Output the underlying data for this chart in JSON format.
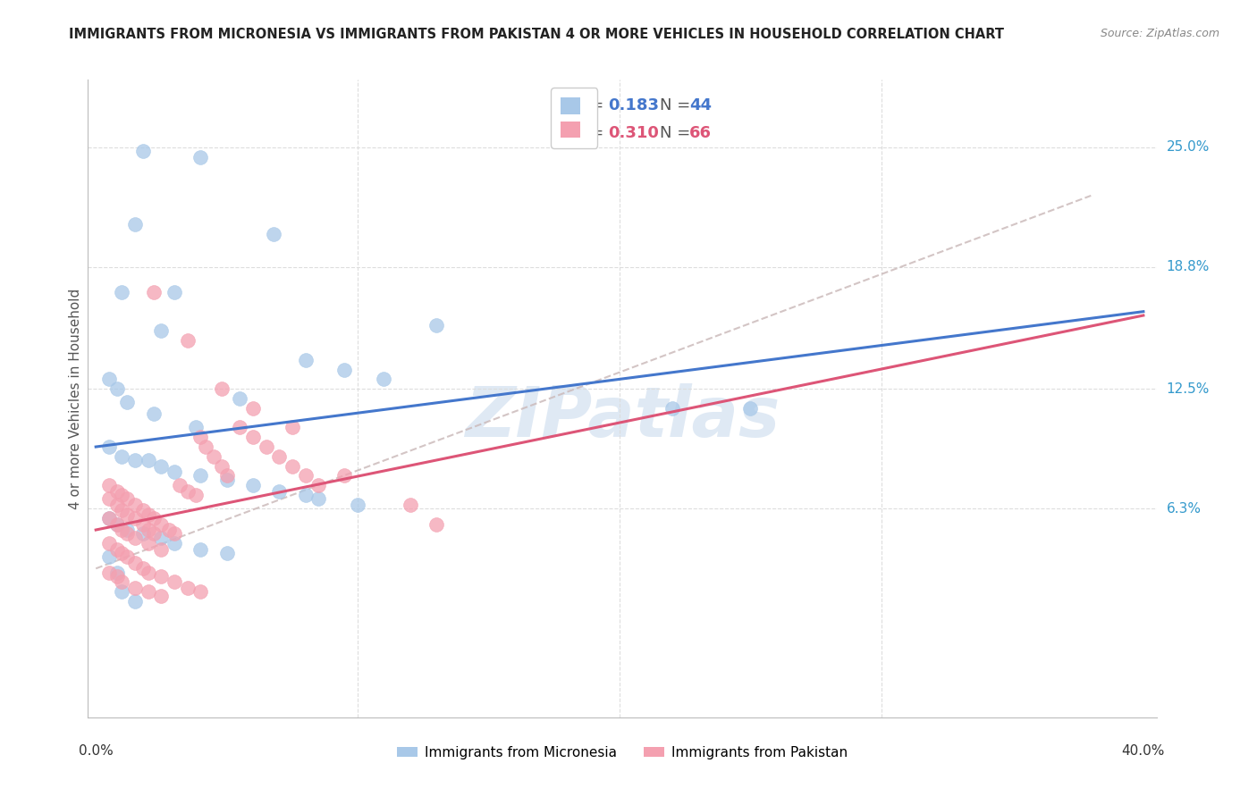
{
  "title": "IMMIGRANTS FROM MICRONESIA VS IMMIGRANTS FROM PAKISTAN 4 OR MORE VEHICLES IN HOUSEHOLD CORRELATION CHART",
  "source": "Source: ZipAtlas.com",
  "ylabel": "4 or more Vehicles in Household",
  "ytick_labels": [
    "25.0%",
    "18.8%",
    "12.5%",
    "6.3%"
  ],
  "ytick_values": [
    0.25,
    0.188,
    0.125,
    0.063
  ],
  "xlim": [
    0.0,
    0.4
  ],
  "ylim": [
    -0.045,
    0.285
  ],
  "watermark": "ZIPatlas",
  "legend_blue_R": "0.183",
  "legend_blue_N": "44",
  "legend_pink_R": "0.310",
  "legend_pink_N": "66",
  "blue_color": "#a8c8e8",
  "pink_color": "#f4a0b0",
  "line_blue": "#4477cc",
  "line_pink": "#dd5577",
  "line_dashed_color": "#ccbbbb",
  "grid_color": "#dddddd",
  "mic_x": [
    0.018,
    0.04,
    0.015,
    0.03,
    0.068,
    0.13,
    0.01,
    0.025,
    0.005,
    0.008,
    0.012,
    0.022,
    0.038,
    0.055,
    0.08,
    0.095,
    0.11,
    0.005,
    0.01,
    0.015,
    0.02,
    0.025,
    0.03,
    0.04,
    0.05,
    0.06,
    0.07,
    0.08,
    0.085,
    0.1,
    0.005,
    0.008,
    0.012,
    0.018,
    0.025,
    0.03,
    0.04,
    0.05,
    0.005,
    0.008,
    0.22,
    0.25,
    0.01,
    0.015
  ],
  "mic_y": [
    0.248,
    0.245,
    0.21,
    0.175,
    0.205,
    0.158,
    0.175,
    0.155,
    0.13,
    0.125,
    0.118,
    0.112,
    0.105,
    0.12,
    0.14,
    0.135,
    0.13,
    0.095,
    0.09,
    0.088,
    0.088,
    0.085,
    0.082,
    0.08,
    0.078,
    0.075,
    0.072,
    0.07,
    0.068,
    0.065,
    0.058,
    0.055,
    0.052,
    0.05,
    0.048,
    0.045,
    0.042,
    0.04,
    0.038,
    0.03,
    0.115,
    0.115,
    0.02,
    0.015
  ],
  "pak_x": [
    0.005,
    0.008,
    0.01,
    0.012,
    0.015,
    0.018,
    0.02,
    0.022,
    0.025,
    0.028,
    0.03,
    0.032,
    0.035,
    0.038,
    0.04,
    0.042,
    0.045,
    0.048,
    0.05,
    0.055,
    0.06,
    0.065,
    0.07,
    0.075,
    0.08,
    0.085,
    0.005,
    0.008,
    0.01,
    0.012,
    0.015,
    0.018,
    0.02,
    0.025,
    0.03,
    0.035,
    0.04,
    0.005,
    0.008,
    0.01,
    0.012,
    0.015,
    0.02,
    0.025,
    0.005,
    0.008,
    0.01,
    0.015,
    0.02,
    0.025,
    0.005,
    0.008,
    0.01,
    0.012,
    0.015,
    0.018,
    0.02,
    0.022,
    0.13,
    0.022,
    0.035,
    0.048,
    0.06,
    0.075,
    0.095,
    0.12
  ],
  "pak_y": [
    0.075,
    0.072,
    0.07,
    0.068,
    0.065,
    0.062,
    0.06,
    0.058,
    0.055,
    0.052,
    0.05,
    0.075,
    0.072,
    0.07,
    0.1,
    0.095,
    0.09,
    0.085,
    0.08,
    0.105,
    0.1,
    0.095,
    0.09,
    0.085,
    0.08,
    0.075,
    0.045,
    0.042,
    0.04,
    0.038,
    0.035,
    0.032,
    0.03,
    0.028,
    0.025,
    0.022,
    0.02,
    0.058,
    0.055,
    0.052,
    0.05,
    0.048,
    0.045,
    0.042,
    0.03,
    0.028,
    0.025,
    0.022,
    0.02,
    0.018,
    0.068,
    0.065,
    0.062,
    0.06,
    0.058,
    0.055,
    0.052,
    0.05,
    0.055,
    0.175,
    0.15,
    0.125,
    0.115,
    0.105,
    0.08,
    0.065
  ],
  "blue_line_x": [
    0.0,
    0.4
  ],
  "blue_line_y": [
    0.095,
    0.165
  ],
  "pink_line_x": [
    0.0,
    0.4
  ],
  "pink_line_y": [
    0.052,
    0.163
  ],
  "dashed_line_x": [
    0.0,
    0.38
  ],
  "dashed_line_y": [
    0.032,
    0.225
  ]
}
